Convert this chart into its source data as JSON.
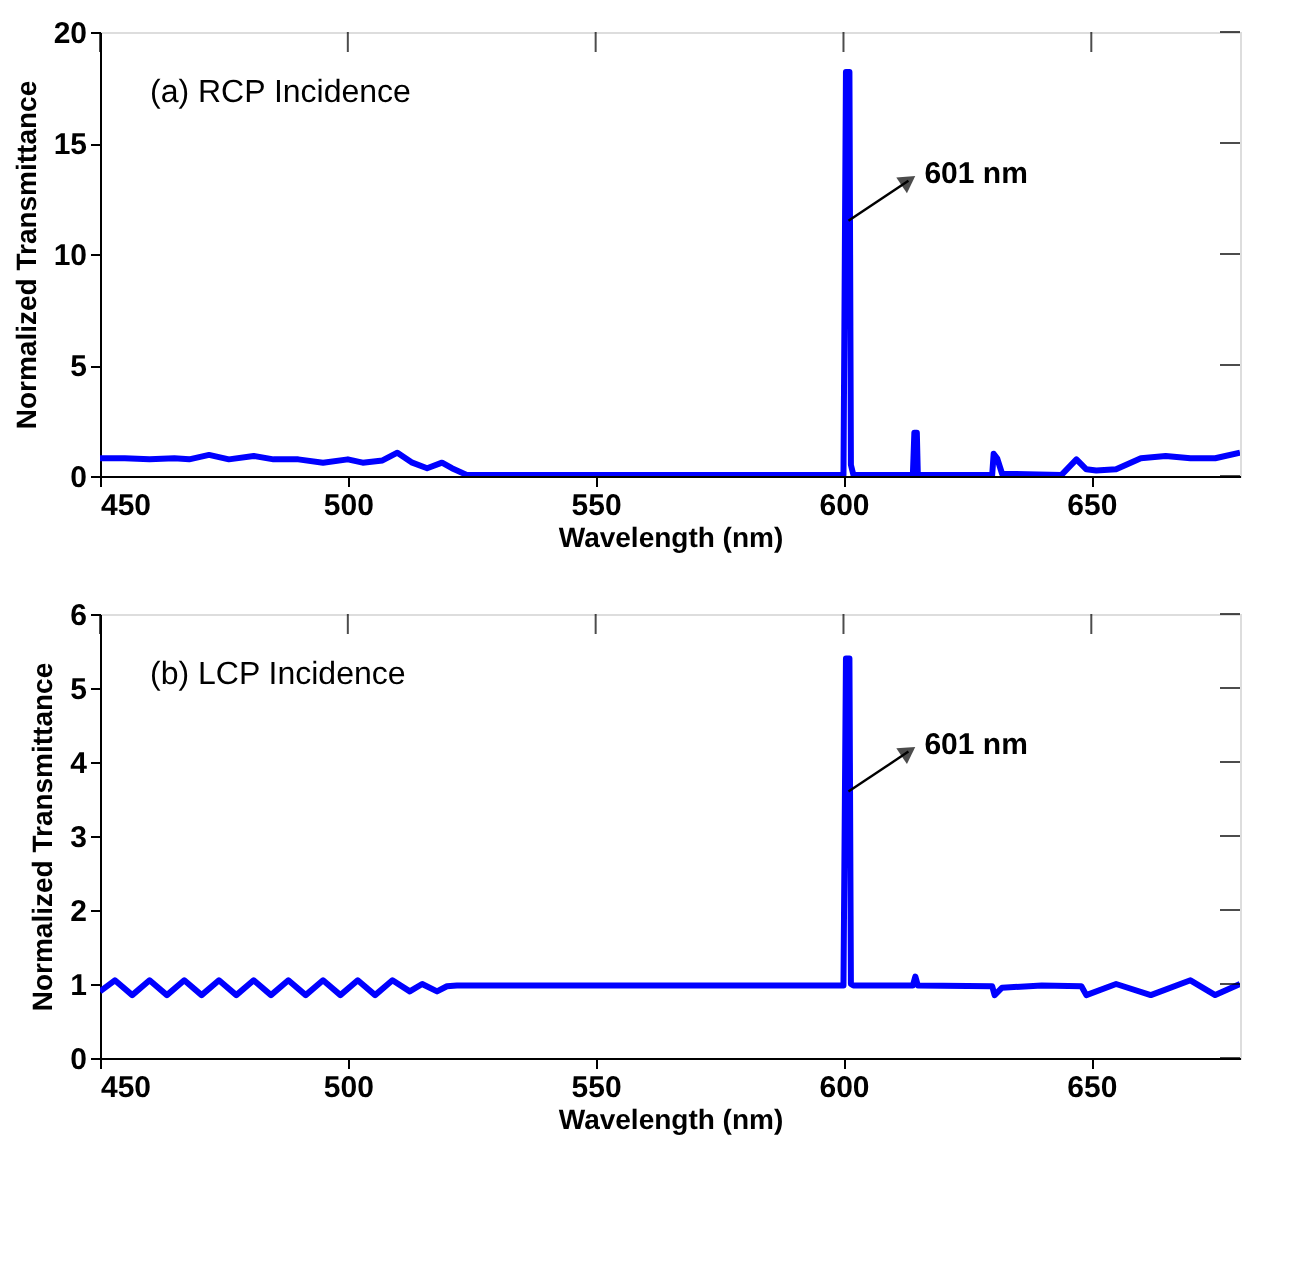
{
  "chart_data": [
    {
      "type": "line",
      "title": "(a) RCP Incidence",
      "xlabel": "Wavelength (nm)",
      "ylabel": "Normalized Transmittance",
      "xlim": [
        450,
        680
      ],
      "ylim": [
        0,
        20
      ],
      "xticks": [
        450,
        500,
        550,
        600,
        650
      ],
      "yticks": [
        0,
        5,
        10,
        15,
        20
      ],
      "grid": false,
      "marker": "none",
      "line_style": "solid",
      "annotations": [
        {
          "text": "601 nm",
          "x": 601,
          "y": 11.5
        }
      ],
      "series": [
        {
          "color": "#0000ff",
          "x": [
            450,
            455,
            460,
            465,
            468,
            472,
            476,
            481,
            485,
            490,
            495,
            500,
            503,
            507,
            510,
            513,
            516,
            519,
            521,
            524,
            600,
            600.5,
            601.2,
            601.5,
            602,
            614,
            614.3,
            614.8,
            615,
            630,
            630.3,
            631,
            632,
            644,
            647,
            649,
            651,
            655,
            660,
            665,
            670,
            675,
            680
          ],
          "values": [
            0.8,
            0.8,
            0.75,
            0.8,
            0.75,
            0.95,
            0.75,
            0.9,
            0.75,
            0.75,
            0.6,
            0.75,
            0.6,
            0.7,
            1.05,
            0.6,
            0.35,
            0.6,
            0.35,
            0.05,
            0.05,
            18.2,
            18.2,
            0.5,
            0.05,
            0.05,
            1.95,
            1.95,
            0.05,
            0.05,
            1.0,
            0.8,
            0.1,
            0.05,
            0.75,
            0.3,
            0.25,
            0.3,
            0.8,
            0.9,
            0.8,
            0.8,
            1.05
          ]
        }
      ]
    },
    {
      "type": "line",
      "title": "(b) LCP Incidence",
      "xlabel": "Wavelength (nm)",
      "ylabel": "Normalized Transmittance",
      "xlim": [
        450,
        680
      ],
      "ylim": [
        0,
        6
      ],
      "xticks": [
        450,
        500,
        550,
        600,
        650
      ],
      "yticks": [
        0,
        1,
        2,
        3,
        4,
        5,
        6
      ],
      "grid": false,
      "marker": "none",
      "line_style": "solid",
      "annotations": [
        {
          "text": "601 nm",
          "x": 601,
          "y": 3.6
        }
      ],
      "series": [
        {
          "color": "#0000ff",
          "x": [
            450,
            453,
            456.5,
            460,
            463.5,
            467,
            470.5,
            474,
            477.5,
            481,
            484.5,
            488,
            491.5,
            495,
            498.5,
            502,
            505.5,
            509,
            512.5,
            515,
            518,
            520,
            522,
            560,
            580,
            600,
            600.5,
            601.2,
            601.5,
            602,
            614,
            614.5,
            615,
            630,
            630.5,
            632,
            640,
            648,
            649,
            655,
            662,
            670,
            675,
            680
          ],
          "values": [
            0.9,
            1.05,
            0.85,
            1.05,
            0.85,
            1.05,
            0.85,
            1.05,
            0.85,
            1.05,
            0.85,
            1.05,
            0.85,
            1.05,
            0.85,
            1.05,
            0.85,
            1.05,
            0.9,
            1.0,
            0.9,
            0.97,
            0.98,
            0.98,
            0.98,
            0.98,
            5.4,
            5.4,
            1.0,
            0.98,
            0.98,
            1.1,
            0.98,
            0.97,
            0.85,
            0.95,
            0.98,
            0.97,
            0.85,
            1.0,
            0.85,
            1.05,
            0.85,
            1.0
          ]
        }
      ]
    }
  ]
}
